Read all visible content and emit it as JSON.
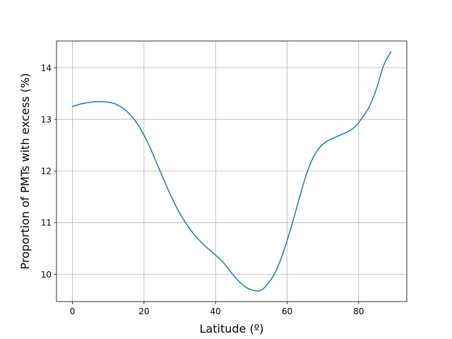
{
  "chart_data": {
    "type": "line",
    "title": "",
    "xlabel": "Latitude (º)",
    "ylabel": "Proportion of PMTs with excess (%)",
    "xlim": [
      -4.45,
      93.45
    ],
    "ylim": [
      9.47,
      14.52
    ],
    "xticks": [
      0,
      20,
      40,
      60,
      80
    ],
    "yticks": [
      10,
      11,
      12,
      13,
      14
    ],
    "grid": true,
    "legend": "none",
    "series": [
      {
        "color": "#1f77b4",
        "x": [
          0,
          3,
          6,
          9,
          12,
          15,
          18,
          21,
          24,
          27,
          30,
          33,
          36,
          39,
          42,
          45,
          48,
          51,
          53,
          55,
          57,
          59,
          61,
          63,
          65,
          67,
          69,
          71,
          73,
          75,
          77,
          79,
          81,
          83,
          85,
          87,
          89
        ],
        "y": [
          13.25,
          13.31,
          13.34,
          13.34,
          13.3,
          13.17,
          12.93,
          12.56,
          12.08,
          11.6,
          11.18,
          10.86,
          10.62,
          10.43,
          10.24,
          9.98,
          9.77,
          9.68,
          9.7,
          9.85,
          10.08,
          10.44,
          10.88,
          11.37,
          11.85,
          12.22,
          12.45,
          12.57,
          12.64,
          12.7,
          12.76,
          12.86,
          13.03,
          13.25,
          13.6,
          14.05,
          14.31
        ]
      }
    ]
  }
}
